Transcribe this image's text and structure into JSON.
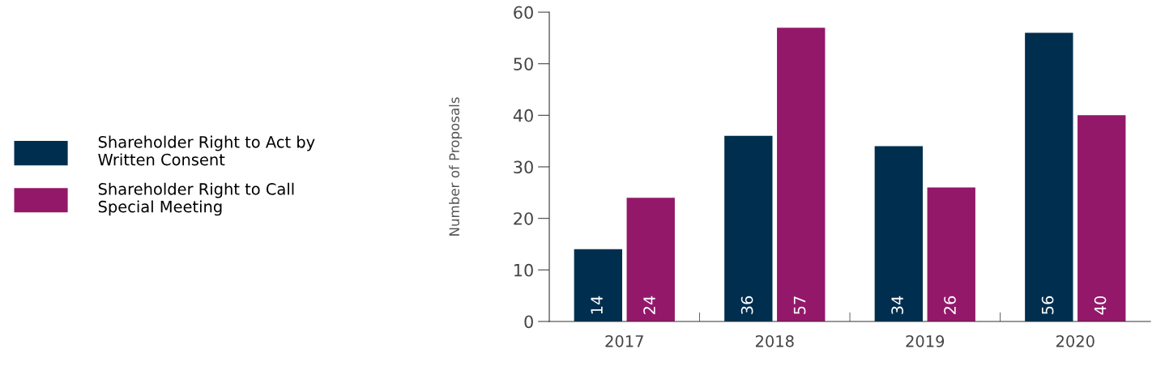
{
  "chart_data": {
    "type": "bar",
    "ylabel": "Number of Proposals",
    "categories": [
      "2017",
      "2018",
      "2019",
      "2020"
    ],
    "series": [
      {
        "name": "Shareholder Right to Act by\nWritten Consent",
        "color": "#002e4f",
        "values": [
          14,
          36,
          34,
          56
        ]
      },
      {
        "name": "Shareholder Right to Call\nSpecial Meeting",
        "color": "#93186a",
        "values": [
          24,
          57,
          26,
          40
        ]
      }
    ],
    "ylim": [
      0,
      60
    ],
    "yticks": [
      0,
      10,
      20,
      30,
      40,
      50,
      60
    ],
    "data_labels": true,
    "legend": "left",
    "grid": false
  }
}
